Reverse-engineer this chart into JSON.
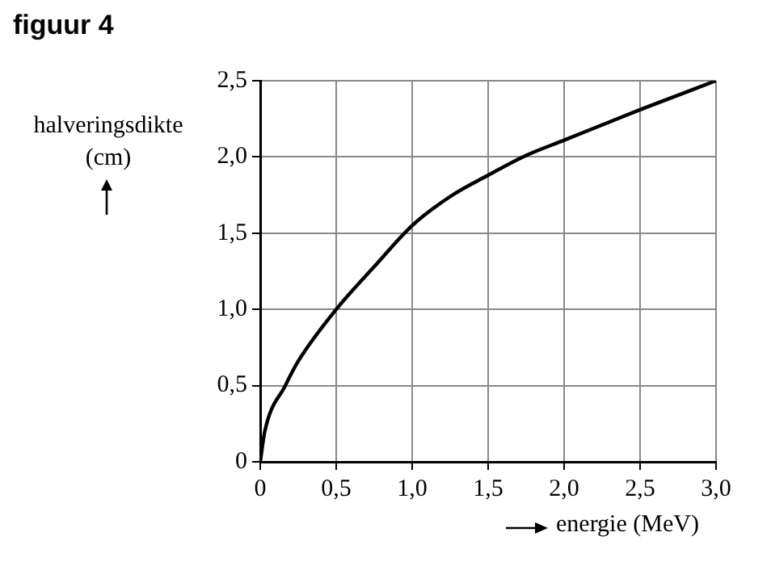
{
  "chart_data": {
    "type": "line",
    "title": "figuur 4",
    "xlabel": "energie (MeV)",
    "ylabel": "halveringsdikte (cm)",
    "x": [
      0,
      0.03,
      0.165,
      0.25,
      0.5,
      0.75,
      1.0,
      1.25,
      1.5,
      1.75,
      2.0,
      2.5,
      3.0
    ],
    "series": [
      {
        "color": "#000000",
        "values": [
          0,
          0.2,
          0.5,
          0.66,
          1.0,
          1.28,
          1.55,
          1.74,
          1.88,
          2.01,
          2.11,
          2.31,
          2.5
        ]
      }
    ],
    "xlim": [
      0,
      3.0
    ],
    "ylim": [
      0,
      2.5
    ],
    "xticks": [
      0,
      {
        "value": 0.5,
        "label": "0,5"
      },
      {
        "value": 1.0,
        "label": "1,0"
      },
      {
        "value": 1.5,
        "label": "1,5"
      },
      {
        "value": 2.0,
        "label": "2,0"
      },
      {
        "value": 2.5,
        "label": "2,5"
      },
      {
        "value": 3.0,
        "label": "3,0"
      }
    ],
    "yticks": [
      0,
      {
        "value": 0.5,
        "label": "0,5"
      },
      {
        "value": 1.0,
        "label": "1,0"
      },
      {
        "value": 1.5,
        "label": "1,5"
      },
      {
        "value": 2.0,
        "label": "2,0"
      },
      {
        "value": 2.5,
        "label": "2,5"
      }
    ],
    "grid": true,
    "marker": "none",
    "line_style": "solid"
  }
}
